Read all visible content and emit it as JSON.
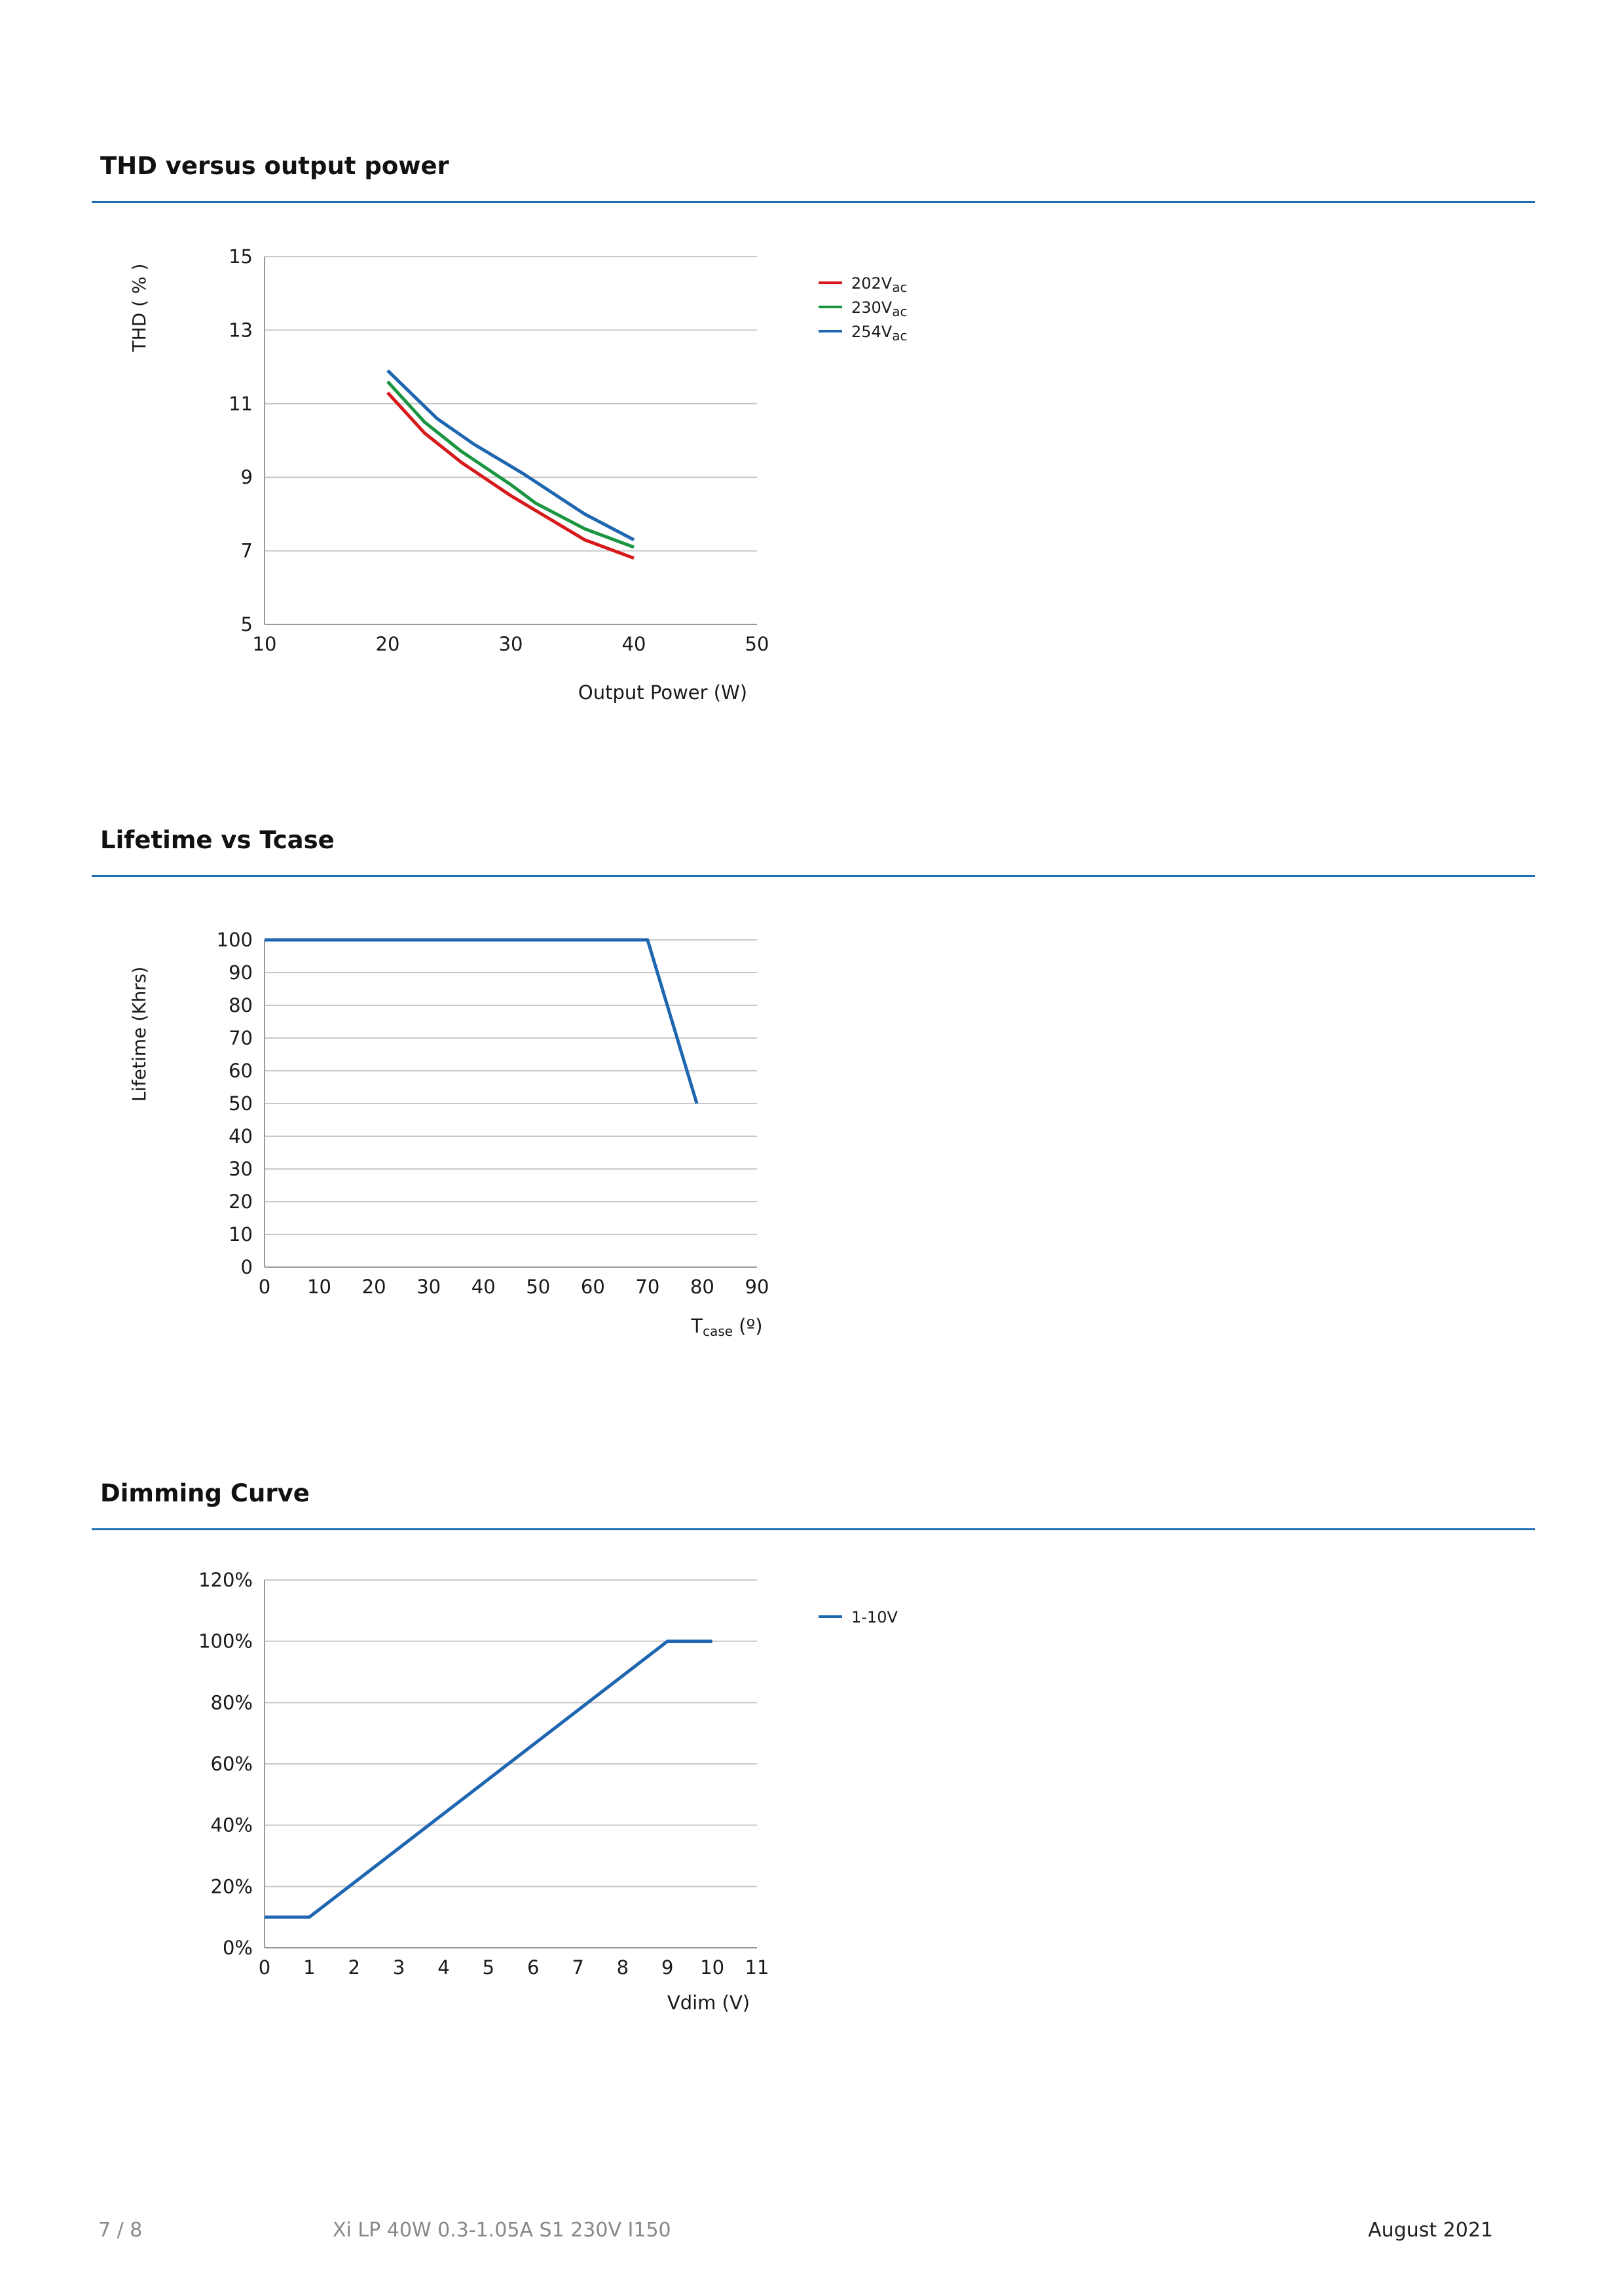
{
  "sections": [
    {
      "title": "THD versus output power"
    },
    {
      "title": "Lifetime vs Tcase"
    },
    {
      "title": "Dimming Curve"
    }
  ],
  "chart_data": [
    {
      "type": "line",
      "ylabel": "THD ( % )",
      "xlabel": "Output Power (W)",
      "xlim": [
        10,
        50
      ],
      "ylim": [
        5,
        15
      ],
      "xticks": [
        10,
        20,
        30,
        40,
        50
      ],
      "yticks": [
        5,
        7,
        9,
        11,
        13,
        15
      ],
      "grid": true,
      "legend_position": "right",
      "series": [
        {
          "name": "202V",
          "name_sub": "ac",
          "color": "#d7191c",
          "x": [
            20,
            23,
            26,
            30,
            33,
            36,
            40
          ],
          "y": [
            11.3,
            10.2,
            9.4,
            8.5,
            7.9,
            7.3,
            6.8
          ]
        },
        {
          "name": "230V",
          "name_sub": "ac",
          "color": "#1a9641",
          "x": [
            20,
            23,
            26,
            30,
            32,
            36,
            40
          ],
          "y": [
            11.6,
            10.5,
            9.7,
            8.8,
            8.3,
            7.6,
            7.1
          ]
        },
        {
          "name": "254V",
          "name_sub": "ac",
          "color": "#1f66b1",
          "x": [
            20,
            24,
            27,
            31,
            36,
            40
          ],
          "y": [
            11.9,
            10.6,
            9.9,
            9.1,
            8.0,
            7.3
          ]
        }
      ]
    },
    {
      "type": "line",
      "ylabel": "Lifetime (Khrs)",
      "xlabel": "T",
      "xlabel_sub": "case",
      "xlabel_suffix": " (º)",
      "xlim": [
        0,
        90
      ],
      "ylim": [
        0,
        100
      ],
      "xticks": [
        0,
        10,
        20,
        30,
        40,
        50,
        60,
        70,
        80,
        90
      ],
      "yticks": [
        0,
        10,
        20,
        30,
        40,
        50,
        60,
        70,
        80,
        90,
        100
      ],
      "grid": true,
      "series": [
        {
          "name": "",
          "color": "#1f66b1",
          "x": [
            0,
            70,
            79
          ],
          "y": [
            100,
            100,
            50
          ]
        }
      ]
    },
    {
      "type": "line",
      "xlabel": "Vdim (V)",
      "ylabel": "",
      "xlim": [
        0,
        11
      ],
      "ylim": [
        0,
        120
      ],
      "xticks": [
        0,
        1,
        2,
        3,
        4,
        5,
        6,
        7,
        8,
        9,
        10,
        11
      ],
      "yticks": [
        0,
        20,
        40,
        60,
        80,
        100,
        120
      ],
      "ytick_suffix": "%",
      "grid": true,
      "legend_position": "right",
      "series": [
        {
          "name": "1-10V",
          "color": "#1f66b1",
          "x": [
            0,
            1,
            9,
            10
          ],
          "y": [
            10,
            10,
            100,
            100
          ]
        }
      ]
    }
  ],
  "footer": {
    "page": "7 / 8",
    "product": "Xi LP 40W 0.3-1.05A S1 230V I150",
    "date": "August 2021"
  }
}
